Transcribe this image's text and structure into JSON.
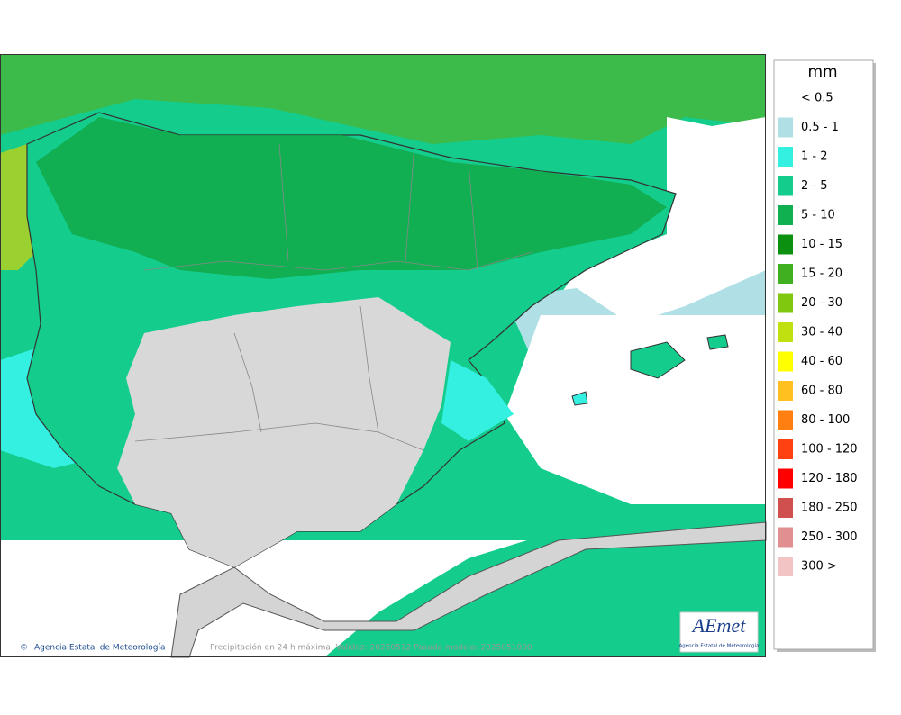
{
  "legend": {
    "title": "mm",
    "entries": [
      {
        "label": "< 0.5",
        "color": "#ffffff"
      },
      {
        "label": "0.5 - 1",
        "color": "#b0e0e6"
      },
      {
        "label": "1 - 2",
        "color": "#33f0e0"
      },
      {
        "label": "2 - 5",
        "color": "#14cc8c"
      },
      {
        "label": "5 - 10",
        "color": "#10b050"
      },
      {
        "label": "10 - 15",
        "color": "#0c9010"
      },
      {
        "label": "15 - 20",
        "color": "#40b020"
      },
      {
        "label": "20 - 30",
        "color": "#80c810"
      },
      {
        "label": "30 - 40",
        "color": "#c0e010"
      },
      {
        "label": "40 - 60",
        "color": "#ffff00"
      },
      {
        "label": "60 - 80",
        "color": "#ffc020"
      },
      {
        "label": "80 - 100",
        "color": "#ff8010"
      },
      {
        "label": "100 - 120",
        "color": "#ff4010"
      },
      {
        "label": "120 - 180",
        "color": "#ff0000"
      },
      {
        "label": "180 - 250",
        "color": "#d05050"
      },
      {
        "label": "250 - 300",
        "color": "#e09090"
      },
      {
        "label": "300 >",
        "color": "#f2c4c4"
      }
    ]
  },
  "footer": {
    "credit": "Agencia Estatal de Meteorología",
    "caption": "Precipitación en 24 h máxima. Validez: 20250512 Pasada modelo: 2025051000"
  },
  "logo": {
    "name": "AEmet",
    "subtitle": "Agencia Estatal de Meteorología"
  }
}
